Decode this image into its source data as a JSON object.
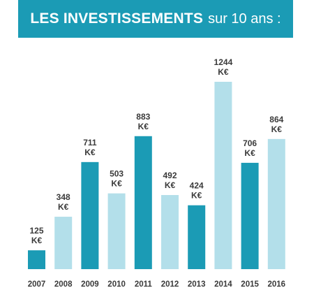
{
  "title": {
    "bold": "LES INVESTISSEMENTS",
    "light": "sur 10 ans :"
  },
  "colors": {
    "banner": "#1b9bb5",
    "dark_bar": "#1b9bb5",
    "light_bar": "#b3dfea"
  },
  "chart_data": {
    "type": "bar",
    "title": "LES INVESTISSEMENTS sur 10 ans :",
    "categories": [
      "2007",
      "2008",
      "2009",
      "2010",
      "2011",
      "2012",
      "2013",
      "2014",
      "2015",
      "2016"
    ],
    "values": [
      125,
      348,
      711,
      503,
      883,
      492,
      424,
      1244,
      706,
      864
    ],
    "unit": "K€",
    "value_labels": [
      "125",
      "348",
      "711",
      "503",
      "883",
      "492",
      "424",
      "1244",
      "706",
      "864"
    ],
    "bar_shades": [
      "dark",
      "light",
      "dark",
      "light",
      "dark",
      "light",
      "dark",
      "light",
      "dark",
      "light"
    ],
    "grid": false,
    "legend": "none",
    "ylim": [
      0,
      1244
    ]
  }
}
